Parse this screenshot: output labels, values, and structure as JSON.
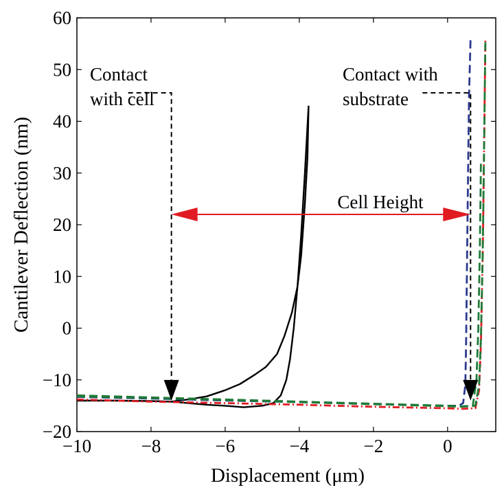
{
  "chart_data": {
    "type": "line",
    "xlabel": "Displacement (μm)",
    "ylabel": "Cantilever Deflection (nm)",
    "xlim": [
      -10,
      1.3
    ],
    "ylim": [
      -20,
      60
    ],
    "x_ticks": [
      -10,
      -8,
      -6,
      -4,
      -2,
      0
    ],
    "y_ticks": [
      -20,
      -10,
      0,
      10,
      20,
      30,
      40,
      50,
      60
    ],
    "x_tick_labels": [
      "−10",
      "−8",
      "−6",
      "−4",
      "−2",
      "0"
    ],
    "y_tick_labels": [
      "−20",
      "−10",
      "0",
      "10",
      "20",
      "30",
      "40",
      "50",
      "60"
    ],
    "grid": false,
    "series": [
      {
        "color": "#000000",
        "style": "solid",
        "x": [
          -10,
          -9,
          -8,
          -7.45,
          -7,
          -6.5,
          -6,
          -5.6,
          -5.2,
          -4.9,
          -4.6,
          -4.4,
          -4.2,
          -4.05,
          -3.95,
          -3.85,
          -3.78,
          -3.75
        ],
        "y": [
          -14,
          -14,
          -14.1,
          -14.2,
          -13.8,
          -13.2,
          -12,
          -10.8,
          -9,
          -7.5,
          -5,
          -1.5,
          3,
          8,
          14,
          24,
          33,
          43
        ]
      },
      {
        "color": "#000000",
        "style": "solid",
        "x": [
          -10,
          -9,
          -8,
          -7.45,
          -7,
          -6.5,
          -6,
          -5.5,
          -5,
          -4.7,
          -4.5,
          -4.35,
          -4.25,
          -4.15,
          -4.05,
          -3.95,
          -3.85,
          -3.75
        ],
        "y": [
          -14,
          -14,
          -14.1,
          -14.2,
          -14.5,
          -14.8,
          -15,
          -15.3,
          -15,
          -14.5,
          -13,
          -10,
          -6,
          0,
          8,
          18,
          30,
          43
        ]
      },
      {
        "color": "#2b3a8f",
        "style": "dashed",
        "x": [
          -10,
          -8,
          -6,
          -4,
          -2,
          0,
          0.3,
          0.42,
          0.48,
          0.5,
          0.52,
          0.55,
          0.58,
          0.62
        ],
        "y": [
          -13.3,
          -13.6,
          -14,
          -14.3,
          -14.7,
          -15,
          -15,
          -14.5,
          -11,
          -3,
          10,
          28,
          45,
          56
        ]
      },
      {
        "color": "#e11b22",
        "style": "dashdot",
        "x": [
          -10,
          -8,
          -6,
          -4,
          -2,
          0,
          0.4,
          0.75,
          0.85,
          0.9,
          0.95,
          0.99,
          1.02
        ],
        "y": [
          -13.8,
          -14.2,
          -14.5,
          -14.8,
          -15.2,
          -15.5,
          -15.6,
          -15.5,
          -12,
          -3,
          15,
          38,
          56
        ]
      },
      {
        "color": "#1f7a38",
        "style": "dashed",
        "x": [
          -10,
          -8,
          -6,
          -4,
          -2,
          0,
          0.4,
          0.75,
          0.85,
          0.9,
          0.95,
          0.99,
          1.02
        ],
        "y": [
          -13,
          -13.4,
          -13.8,
          -14.2,
          -14.6,
          -15,
          -15.1,
          -15,
          -11,
          -2,
          15,
          38,
          56
        ]
      },
      {
        "color": "#1f7a38",
        "style": "dashed",
        "x": [
          -10,
          -8,
          -6,
          -4,
          -2,
          0,
          0.35,
          0.68,
          0.78,
          0.83,
          0.87,
          0.9
        ],
        "y": [
          -13.2,
          -13.5,
          -13.9,
          -14.3,
          -14.7,
          -15.1,
          -15.2,
          -15.1,
          -10,
          0,
          15,
          32
        ]
      }
    ],
    "annotations": [
      {
        "lines": [
          "Contact",
          "with cell"
        ]
      },
      {
        "lines": [
          "Contact with",
          "substrate"
        ]
      },
      {
        "text": "Cell Height"
      }
    ],
    "annotation_points": {
      "contact_cell_x": -7.45,
      "contact_substrate_x": 0.62,
      "arrow_tip_y": -14,
      "leader_top_y": 45.5,
      "cell_height_y": 22
    }
  }
}
